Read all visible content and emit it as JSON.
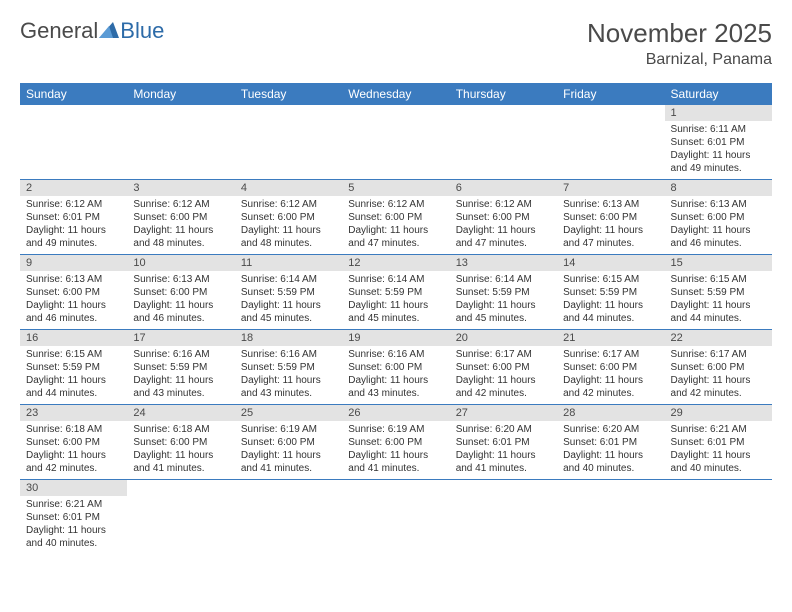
{
  "logo": {
    "general": "General",
    "blue": "Blue"
  },
  "title": "November 2025",
  "location": "Barnizal, Panama",
  "colors": {
    "header_bg": "#3b7bbf",
    "header_fg": "#ffffff",
    "daynum_bg": "#e3e3e3",
    "rule": "#3b7bbf",
    "text": "#333333",
    "title": "#4a4a4a"
  },
  "day_headers": [
    "Sunday",
    "Monday",
    "Tuesday",
    "Wednesday",
    "Thursday",
    "Friday",
    "Saturday"
  ],
  "weeks": [
    [
      null,
      null,
      null,
      null,
      null,
      null,
      {
        "n": "1",
        "sunrise": "Sunrise: 6:11 AM",
        "sunset": "Sunset: 6:01 PM",
        "day1": "Daylight: 11 hours",
        "day2": "and 49 minutes."
      }
    ],
    [
      {
        "n": "2",
        "sunrise": "Sunrise: 6:12 AM",
        "sunset": "Sunset: 6:01 PM",
        "day1": "Daylight: 11 hours",
        "day2": "and 49 minutes."
      },
      {
        "n": "3",
        "sunrise": "Sunrise: 6:12 AM",
        "sunset": "Sunset: 6:00 PM",
        "day1": "Daylight: 11 hours",
        "day2": "and 48 minutes."
      },
      {
        "n": "4",
        "sunrise": "Sunrise: 6:12 AM",
        "sunset": "Sunset: 6:00 PM",
        "day1": "Daylight: 11 hours",
        "day2": "and 48 minutes."
      },
      {
        "n": "5",
        "sunrise": "Sunrise: 6:12 AM",
        "sunset": "Sunset: 6:00 PM",
        "day1": "Daylight: 11 hours",
        "day2": "and 47 minutes."
      },
      {
        "n": "6",
        "sunrise": "Sunrise: 6:12 AM",
        "sunset": "Sunset: 6:00 PM",
        "day1": "Daylight: 11 hours",
        "day2": "and 47 minutes."
      },
      {
        "n": "7",
        "sunrise": "Sunrise: 6:13 AM",
        "sunset": "Sunset: 6:00 PM",
        "day1": "Daylight: 11 hours",
        "day2": "and 47 minutes."
      },
      {
        "n": "8",
        "sunrise": "Sunrise: 6:13 AM",
        "sunset": "Sunset: 6:00 PM",
        "day1": "Daylight: 11 hours",
        "day2": "and 46 minutes."
      }
    ],
    [
      {
        "n": "9",
        "sunrise": "Sunrise: 6:13 AM",
        "sunset": "Sunset: 6:00 PM",
        "day1": "Daylight: 11 hours",
        "day2": "and 46 minutes."
      },
      {
        "n": "10",
        "sunrise": "Sunrise: 6:13 AM",
        "sunset": "Sunset: 6:00 PM",
        "day1": "Daylight: 11 hours",
        "day2": "and 46 minutes."
      },
      {
        "n": "11",
        "sunrise": "Sunrise: 6:14 AM",
        "sunset": "Sunset: 5:59 PM",
        "day1": "Daylight: 11 hours",
        "day2": "and 45 minutes."
      },
      {
        "n": "12",
        "sunrise": "Sunrise: 6:14 AM",
        "sunset": "Sunset: 5:59 PM",
        "day1": "Daylight: 11 hours",
        "day2": "and 45 minutes."
      },
      {
        "n": "13",
        "sunrise": "Sunrise: 6:14 AM",
        "sunset": "Sunset: 5:59 PM",
        "day1": "Daylight: 11 hours",
        "day2": "and 45 minutes."
      },
      {
        "n": "14",
        "sunrise": "Sunrise: 6:15 AM",
        "sunset": "Sunset: 5:59 PM",
        "day1": "Daylight: 11 hours",
        "day2": "and 44 minutes."
      },
      {
        "n": "15",
        "sunrise": "Sunrise: 6:15 AM",
        "sunset": "Sunset: 5:59 PM",
        "day1": "Daylight: 11 hours",
        "day2": "and 44 minutes."
      }
    ],
    [
      {
        "n": "16",
        "sunrise": "Sunrise: 6:15 AM",
        "sunset": "Sunset: 5:59 PM",
        "day1": "Daylight: 11 hours",
        "day2": "and 44 minutes."
      },
      {
        "n": "17",
        "sunrise": "Sunrise: 6:16 AM",
        "sunset": "Sunset: 5:59 PM",
        "day1": "Daylight: 11 hours",
        "day2": "and 43 minutes."
      },
      {
        "n": "18",
        "sunrise": "Sunrise: 6:16 AM",
        "sunset": "Sunset: 5:59 PM",
        "day1": "Daylight: 11 hours",
        "day2": "and 43 minutes."
      },
      {
        "n": "19",
        "sunrise": "Sunrise: 6:16 AM",
        "sunset": "Sunset: 6:00 PM",
        "day1": "Daylight: 11 hours",
        "day2": "and 43 minutes."
      },
      {
        "n": "20",
        "sunrise": "Sunrise: 6:17 AM",
        "sunset": "Sunset: 6:00 PM",
        "day1": "Daylight: 11 hours",
        "day2": "and 42 minutes."
      },
      {
        "n": "21",
        "sunrise": "Sunrise: 6:17 AM",
        "sunset": "Sunset: 6:00 PM",
        "day1": "Daylight: 11 hours",
        "day2": "and 42 minutes."
      },
      {
        "n": "22",
        "sunrise": "Sunrise: 6:17 AM",
        "sunset": "Sunset: 6:00 PM",
        "day1": "Daylight: 11 hours",
        "day2": "and 42 minutes."
      }
    ],
    [
      {
        "n": "23",
        "sunrise": "Sunrise: 6:18 AM",
        "sunset": "Sunset: 6:00 PM",
        "day1": "Daylight: 11 hours",
        "day2": "and 42 minutes."
      },
      {
        "n": "24",
        "sunrise": "Sunrise: 6:18 AM",
        "sunset": "Sunset: 6:00 PM",
        "day1": "Daylight: 11 hours",
        "day2": "and 41 minutes."
      },
      {
        "n": "25",
        "sunrise": "Sunrise: 6:19 AM",
        "sunset": "Sunset: 6:00 PM",
        "day1": "Daylight: 11 hours",
        "day2": "and 41 minutes."
      },
      {
        "n": "26",
        "sunrise": "Sunrise: 6:19 AM",
        "sunset": "Sunset: 6:00 PM",
        "day1": "Daylight: 11 hours",
        "day2": "and 41 minutes."
      },
      {
        "n": "27",
        "sunrise": "Sunrise: 6:20 AM",
        "sunset": "Sunset: 6:01 PM",
        "day1": "Daylight: 11 hours",
        "day2": "and 41 minutes."
      },
      {
        "n": "28",
        "sunrise": "Sunrise: 6:20 AM",
        "sunset": "Sunset: 6:01 PM",
        "day1": "Daylight: 11 hours",
        "day2": "and 40 minutes."
      },
      {
        "n": "29",
        "sunrise": "Sunrise: 6:21 AM",
        "sunset": "Sunset: 6:01 PM",
        "day1": "Daylight: 11 hours",
        "day2": "and 40 minutes."
      }
    ],
    [
      {
        "n": "30",
        "sunrise": "Sunrise: 6:21 AM",
        "sunset": "Sunset: 6:01 PM",
        "day1": "Daylight: 11 hours",
        "day2": "and 40 minutes."
      },
      null,
      null,
      null,
      null,
      null,
      null
    ]
  ]
}
